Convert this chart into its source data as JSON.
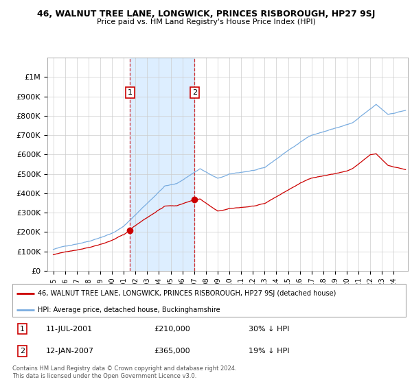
{
  "title": "46, WALNUT TREE LANE, LONGWICK, PRINCES RISBOROUGH, HP27 9SJ",
  "subtitle": "Price paid vs. HM Land Registry's House Price Index (HPI)",
  "sale1_label": "11-JUL-2001",
  "sale1_price": 210000,
  "sale1_pct": "30% ↓ HPI",
  "sale2_label": "12-JAN-2007",
  "sale2_price": 365000,
  "sale2_pct": "19% ↓ HPI",
  "property_color": "#cc0000",
  "hpi_color": "#7aade0",
  "shade_color": "#ddeeff",
  "legend_property": "46, WALNUT TREE LANE, LONGWICK, PRINCES RISBOROUGH, HP27 9SJ (detached house)",
  "legend_hpi": "HPI: Average price, detached house, Buckinghamshire",
  "footer": "Contains HM Land Registry data © Crown copyright and database right 2024.\nThis data is licensed under the Open Government Licence v3.0.",
  "ylim": [
    0,
    1100000
  ],
  "yticks": [
    0,
    100000,
    200000,
    300000,
    400000,
    500000,
    600000,
    700000,
    800000,
    900000,
    1000000
  ],
  "ytick_labels": [
    "£0",
    "£100K",
    "£200K",
    "£300K",
    "£400K",
    "£500K",
    "£600K",
    "£700K",
    "£800K",
    "£900K",
    "£1M"
  ],
  "sale1_x": 2001.54,
  "sale2_x": 2007.04,
  "xmin": 1994.5,
  "xmax": 2025.2
}
